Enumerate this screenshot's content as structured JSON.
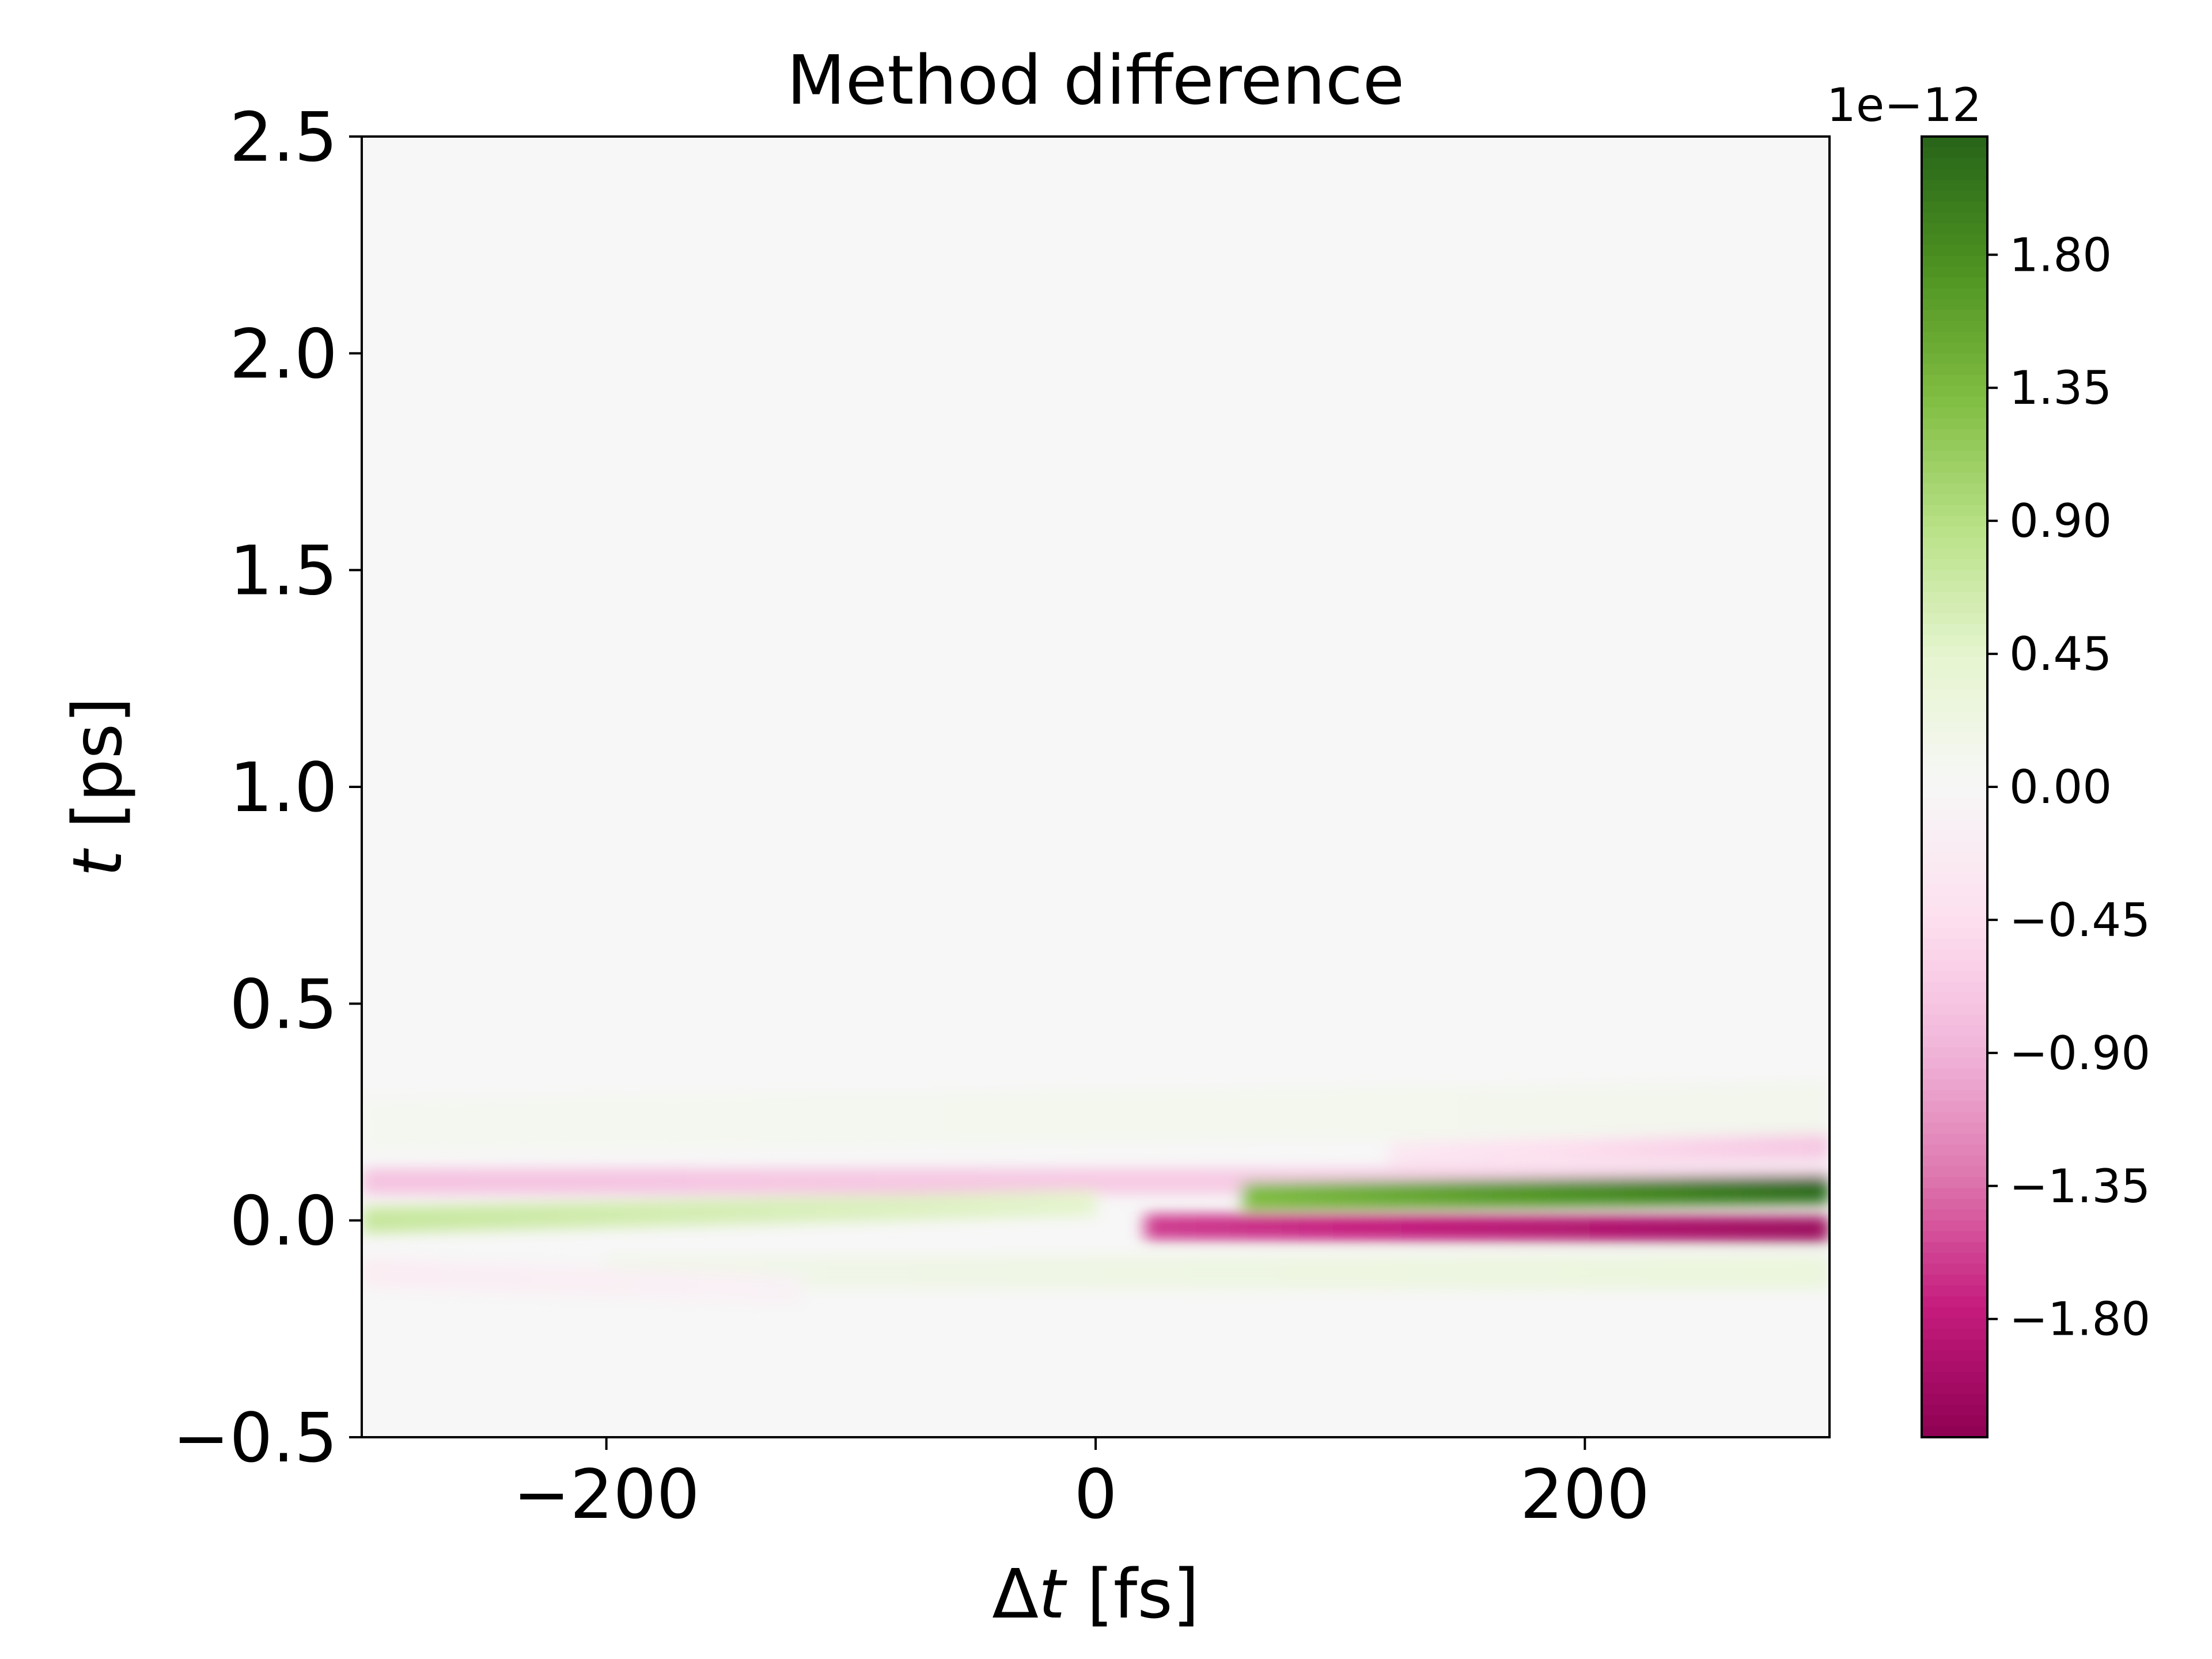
{
  "chart_data": {
    "type": "heatmap",
    "title": "Method difference",
    "xlabel": "Δt [fs]",
    "ylabel": "t [ps]",
    "xlim": [
      -300,
      300
    ],
    "ylim": [
      -0.5,
      2.5
    ],
    "xticks": [
      -200,
      0,
      200
    ],
    "xtick_labels": [
      "−200",
      "0",
      "200"
    ],
    "yticks": [
      -0.5,
      0.0,
      0.5,
      1.0,
      1.5,
      2.0,
      2.5
    ],
    "ytick_labels": [
      "−0.5",
      "0.0",
      "0.5",
      "1.0",
      "1.5",
      "2.0",
      "2.5"
    ],
    "colormap": "PiYG",
    "colorbar": {
      "offset_label": "1e−12",
      "vmin": -2.2,
      "vmax": 2.2,
      "ticks": [
        -1.8,
        -1.35,
        -0.9,
        -0.45,
        0.0,
        0.45,
        0.9,
        1.35,
        1.8
      ],
      "tick_labels": [
        "−1.80",
        "−1.35",
        "−0.90",
        "−0.45",
        "0.00",
        "0.45",
        "0.90",
        "1.35",
        "1.80"
      ]
    },
    "features": [
      {
        "description": "pink band",
        "t_center_ps": 0.09,
        "dt_range_fs": [
          -300,
          300
        ],
        "value_range": [
          -0.9,
          -0.45
        ]
      },
      {
        "description": "green band",
        "t_center_ps": 0.0,
        "dt_range_fs": [
          -300,
          -30
        ],
        "value_range": [
          0.45,
          0.9
        ]
      },
      {
        "description": "dark green band",
        "t_center_ps": 0.07,
        "dt_range_fs": [
          100,
          300
        ],
        "value_range": [
          1.8,
          2.2
        ]
      },
      {
        "description": "dark magenta band",
        "t_center_ps": -0.02,
        "dt_range_fs": [
          30,
          300
        ],
        "value_range": [
          -2.2,
          -1.8
        ]
      },
      {
        "description": "weak pink upper band",
        "t_center_ps": 0.17,
        "dt_range_fs": [
          150,
          300
        ],
        "value_range": [
          -0.9,
          -0.45
        ]
      }
    ],
    "grid": false,
    "legend": "none"
  },
  "colors": {
    "background": "#f7f7f7",
    "axis": "#000000"
  }
}
